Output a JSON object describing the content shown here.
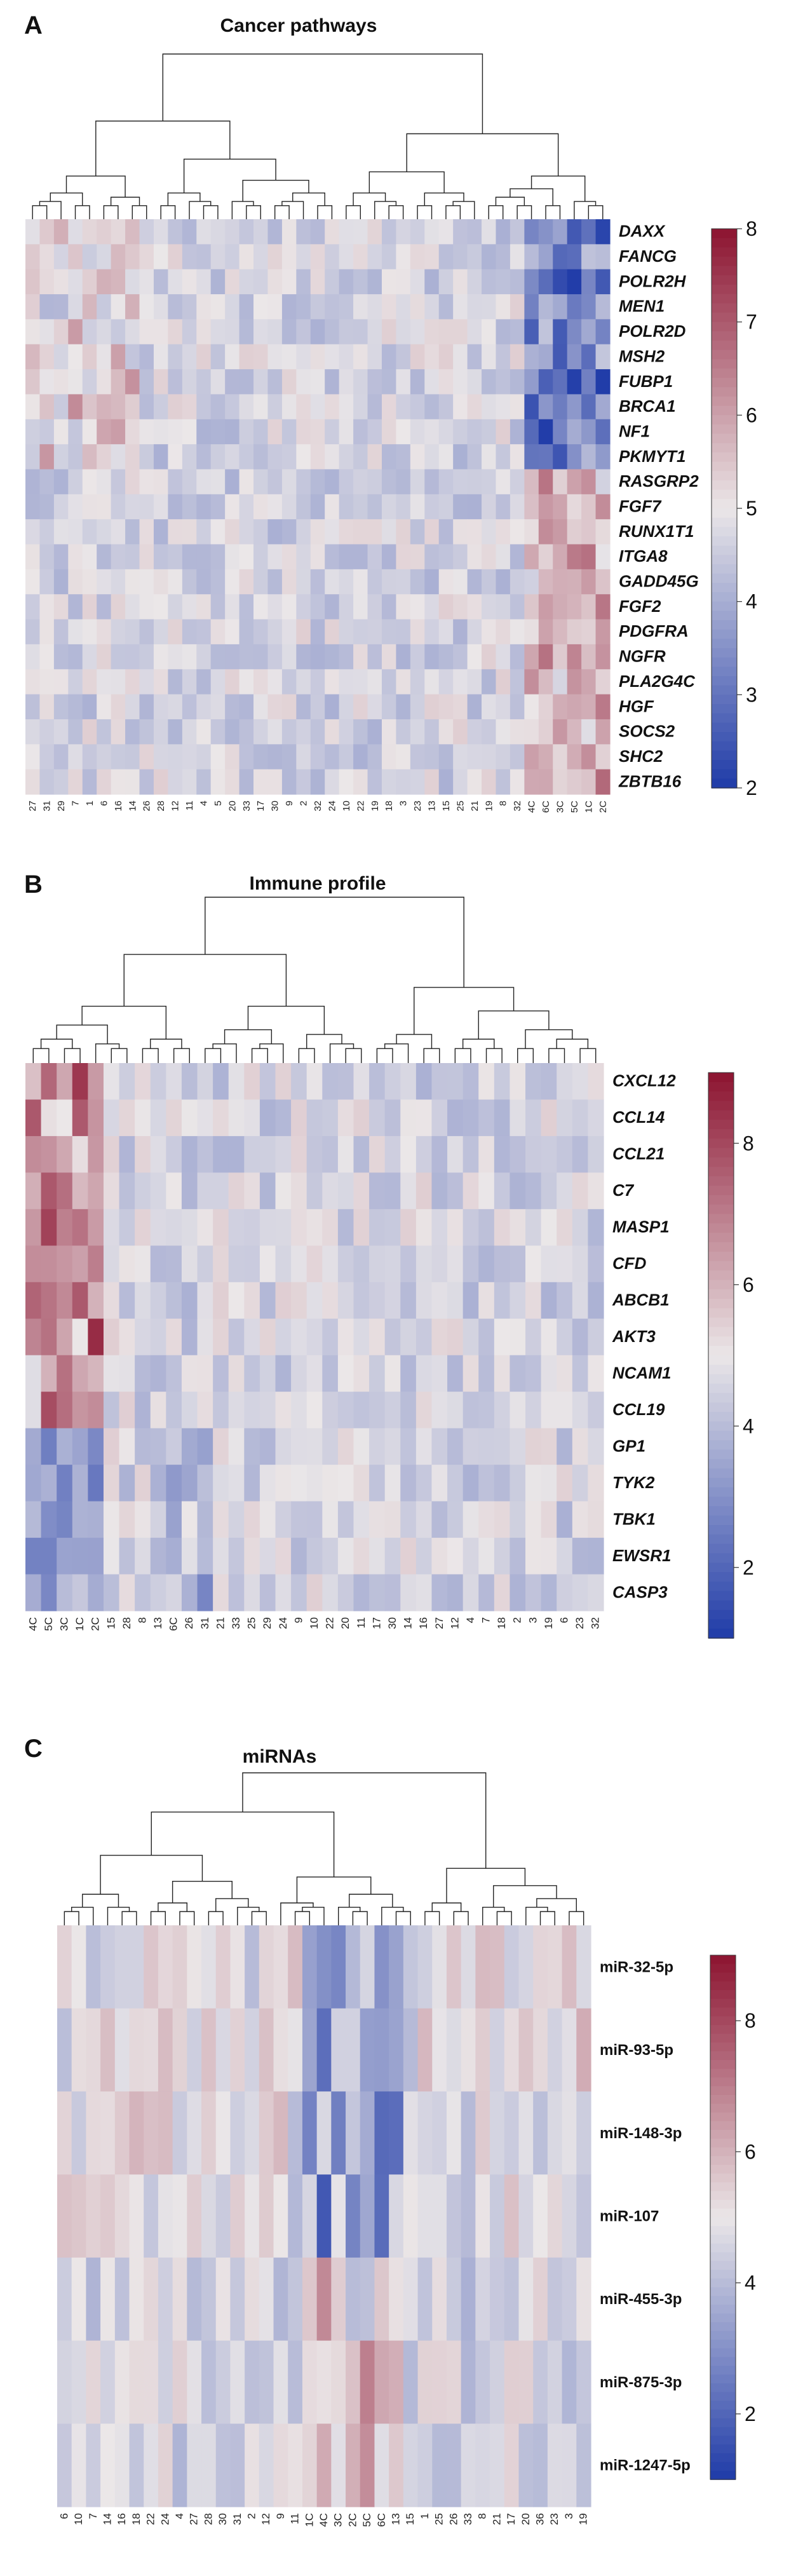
{
  "chart_data": [
    {
      "type": "heatmap",
      "panel": "A",
      "title": "Cancer pathways",
      "rows": [
        "DAXX",
        "FANCG",
        "POLR2H",
        "MEN1",
        "POLR2D",
        "MSH2",
        "FUBP1",
        "BRCA1",
        "NF1",
        "PKMYT1",
        "RASGRP2",
        "FGF7",
        "RUNX1T1",
        "ITGA8",
        "GADD45G",
        "FGF2",
        "PDGFRA",
        "NGFR",
        "PLA2G4C",
        "HGF",
        "SOCS2",
        "SHC2",
        "ZBTB16"
      ],
      "columns": [
        "27",
        "31",
        "29",
        "7",
        "1",
        "6",
        "16",
        "14",
        "26",
        "28",
        "12",
        "11",
        "4",
        "5",
        "20",
        "33",
        "17",
        "30",
        "9",
        "2",
        "32",
        "24",
        "10",
        "22",
        "19",
        "18",
        "3",
        "23",
        "13",
        "15",
        "25",
        "21",
        "19",
        "8",
        "32",
        "4C",
        "6C",
        "3C",
        "5C",
        "1C",
        "2C"
      ],
      "colorbar": {
        "min": 2,
        "max": 8,
        "ticks": [
          2,
          3,
          4,
          5,
          6,
          7,
          8
        ]
      },
      "dendrogram": "columns"
    },
    {
      "type": "heatmap",
      "panel": "B",
      "title": "Immune profile",
      "rows": [
        "CXCL12",
        "CCL14",
        "CCL21",
        "C7",
        "MASP1",
        "CFD",
        "ABCB1",
        "AKT3",
        "NCAM1",
        "CCL19",
        "GP1",
        "TYK2",
        "TBK1",
        "EWSR1",
        "CASP3"
      ],
      "columns": [
        "4C",
        "5C",
        "3C",
        "1C",
        "2C",
        "15",
        "28",
        "8",
        "13",
        "6C",
        "26",
        "31",
        "21",
        "33",
        "25",
        "29",
        "24",
        "9",
        "10",
        "22",
        "20",
        "11",
        "17",
        "30",
        "14",
        "16",
        "27",
        "12",
        "4",
        "7",
        "18",
        "2",
        "3",
        "19",
        "6",
        "23",
        "32"
      ],
      "colorbar": {
        "min": 1,
        "max": 9,
        "ticks": [
          2,
          4,
          6,
          8
        ]
      },
      "dendrogram": "columns"
    },
    {
      "type": "heatmap",
      "panel": "C",
      "title": "miRNAs",
      "rows": [
        "miR-32-5p",
        "miR-93-5p",
        "miR-148-3p",
        "miR-107",
        "miR-455-3p",
        "miR-875-3p",
        "miR-1247-5p"
      ],
      "columns": [
        "6",
        "10",
        "7",
        "14",
        "16",
        "18",
        "22",
        "24",
        "4",
        "27",
        "28",
        "30",
        "31",
        "2",
        "12",
        "9",
        "11",
        "1C",
        "4C",
        "3C",
        "2C",
        "5C",
        "6C",
        "13",
        "15",
        "1",
        "25",
        "26",
        "33",
        "8",
        "21",
        "17",
        "20",
        "36",
        "23",
        "3",
        "19"
      ],
      "colorbar": {
        "min": 1,
        "max": 9,
        "ticks": [
          2,
          4,
          6,
          8
        ]
      },
      "dendrogram": "columns"
    }
  ],
  "colors": {
    "low": "#1f3ba8",
    "mid": "#ebe7e8",
    "high": "#8c1330"
  }
}
